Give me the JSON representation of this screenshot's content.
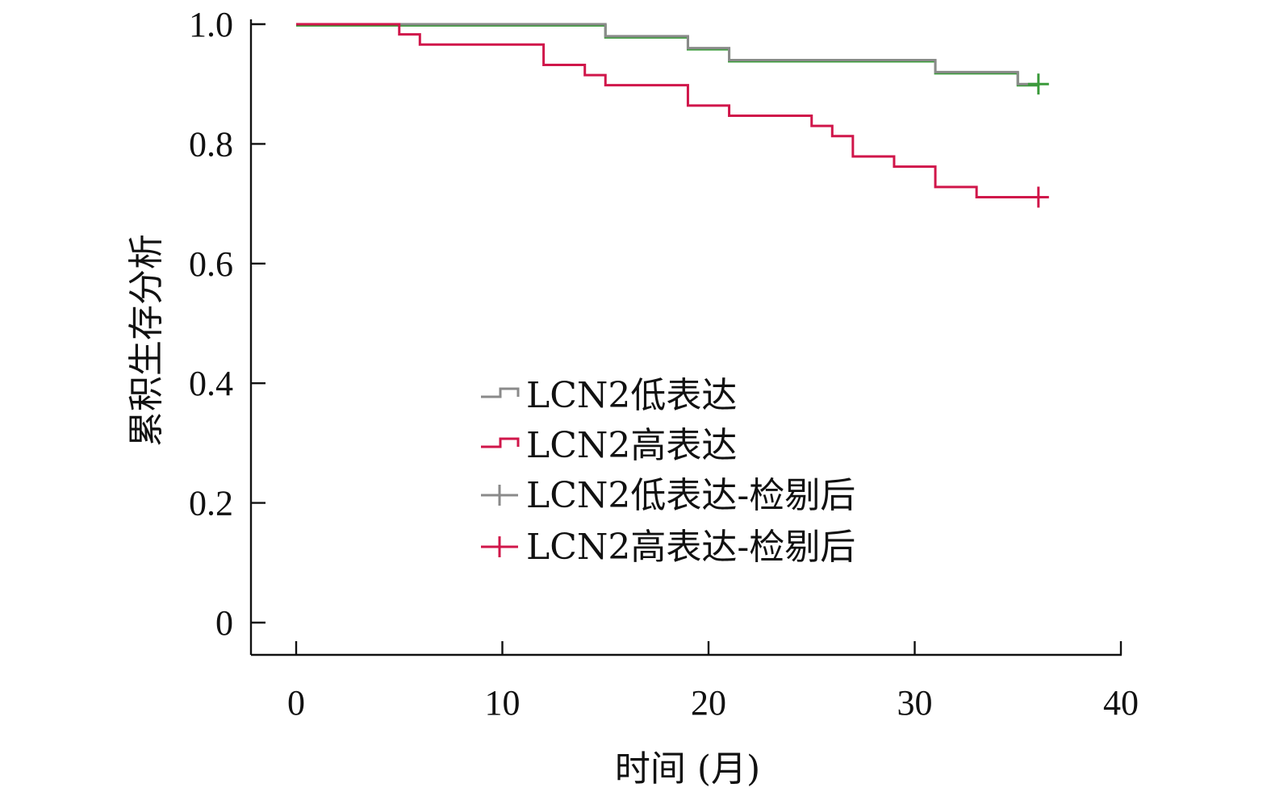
{
  "chart_data": {
    "type": "line",
    "subtype": "kaplan-meier-step",
    "xlabel": "时间 (月)",
    "ylabel": "累积生存分析",
    "xlim": [
      0,
      40
    ],
    "ylim": [
      0,
      1.0
    ],
    "x_ticks": [
      0,
      10,
      20,
      30,
      40
    ],
    "x_tick_labels": [
      "0",
      "10",
      "20",
      "30",
      "40"
    ],
    "y_ticks": [
      0,
      0.2,
      0.4,
      0.6,
      0.8,
      1.0
    ],
    "y_tick_labels": [
      "0",
      "0.2",
      "0.4",
      "0.6",
      "0.8",
      "1.0"
    ],
    "grid": false,
    "legend_position": "center",
    "legend": [
      {
        "label": "LCN2低表达",
        "color": "#8a8a8a",
        "marker": "step"
      },
      {
        "label": "LCN2高表达",
        "color": "#d0164a",
        "marker": "step"
      },
      {
        "label": "LCN2低表达-检剔后",
        "color": "#8a8a8a",
        "marker": "plus"
      },
      {
        "label": "LCN2高表达-检剔后",
        "color": "#d0164a",
        "marker": "plus"
      }
    ],
    "series": [
      {
        "name": "LCN2低表达",
        "color": "#8a8a8a",
        "highlight_color": "#3a9a3a",
        "x": [
          0,
          15,
          19,
          21,
          31,
          35,
          36
        ],
        "y": [
          1.0,
          0.98,
          0.96,
          0.94,
          0.92,
          0.9,
          0.9
        ],
        "censored": [
          {
            "x": 36,
            "y": 0.9
          }
        ]
      },
      {
        "name": "LCN2高表达",
        "color": "#d0164a",
        "x": [
          0,
          5,
          6,
          12,
          14,
          15,
          19,
          21,
          25,
          26,
          27,
          29,
          31,
          33,
          36
        ],
        "y": [
          1.0,
          0.983,
          0.966,
          0.932,
          0.915,
          0.898,
          0.864,
          0.847,
          0.83,
          0.813,
          0.779,
          0.762,
          0.728,
          0.711,
          0.711
        ],
        "censored": [
          {
            "x": 36,
            "y": 0.711
          }
        ]
      }
    ]
  }
}
